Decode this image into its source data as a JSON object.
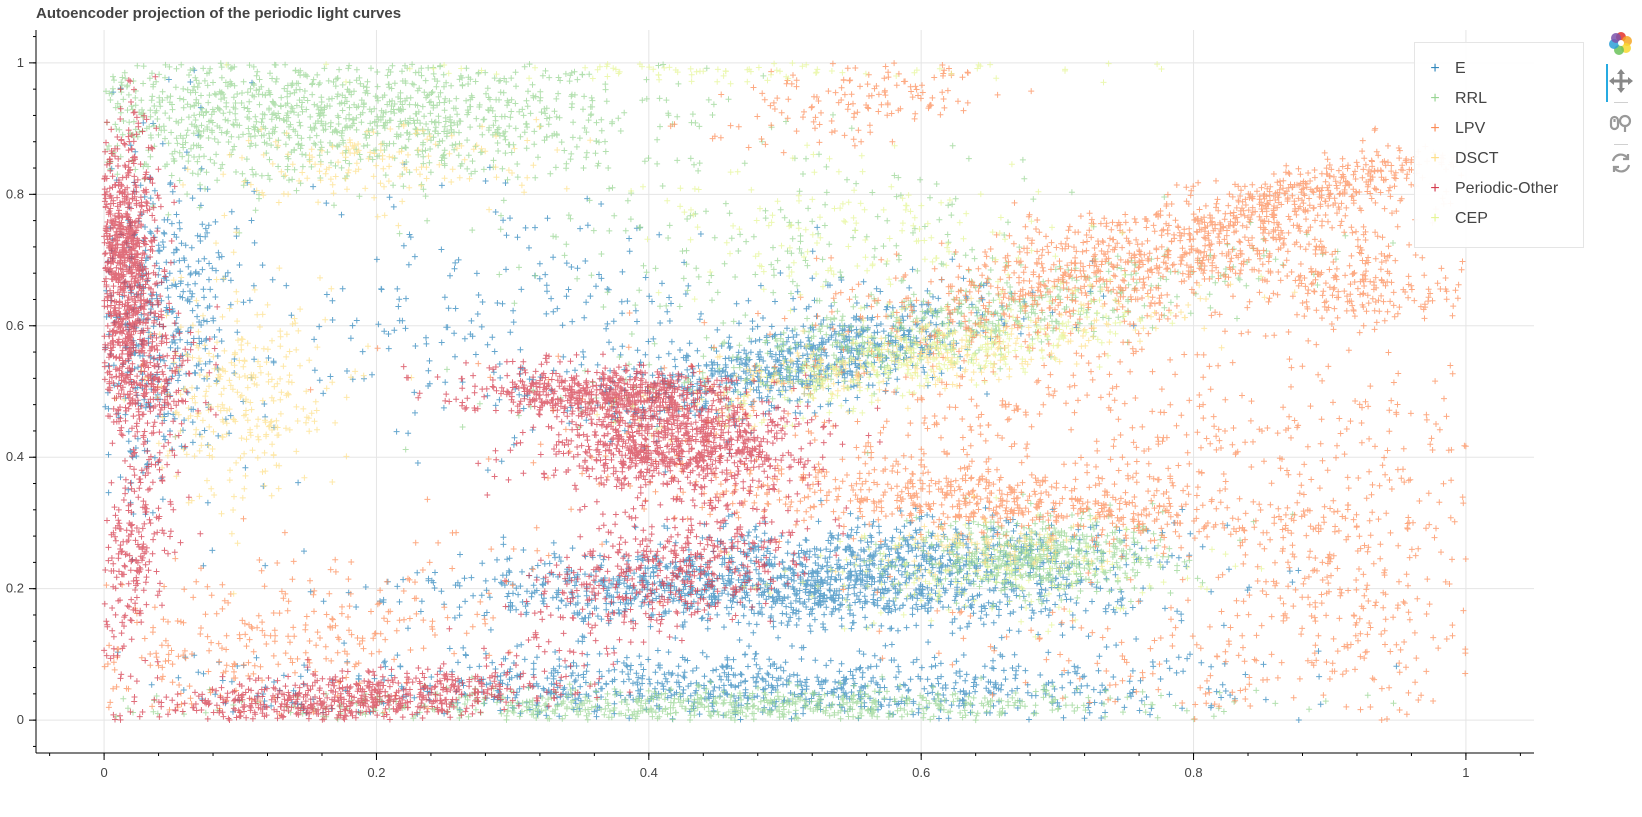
{
  "title": "Autoencoder projection of the periodic light curves",
  "toolbar": {
    "tools": [
      {
        "name": "bokeh-logo-icon",
        "interactable": false
      },
      {
        "name": "pan-icon",
        "interactable": true
      },
      {
        "name": "wheel-zoom-icon",
        "interactable": true
      },
      {
        "name": "reset-icon",
        "interactable": true
      }
    ]
  },
  "chart_data": {
    "type": "scatter",
    "marker": "cross",
    "title": "Autoencoder projection of the periodic light curves",
    "xlabel": "",
    "ylabel": "",
    "xlim": [
      -0.05,
      1.05
    ],
    "ylim": [
      -0.05,
      1.05
    ],
    "x_ticks": [
      "0",
      "0.2",
      "0.4",
      "0.6",
      "0.8",
      "1"
    ],
    "y_ticks": [
      "0",
      "0.2",
      "0.4",
      "0.6",
      "0.8",
      "1"
    ],
    "grid": true,
    "legend_position": "top-right",
    "series": [
      {
        "name": "E",
        "color": "#3288bd",
        "clusters": [
          {
            "cx": 0.5,
            "cy": 0.2,
            "sx": 0.12,
            "sy": 0.03,
            "n": 1200,
            "slope": 0
          },
          {
            "cx": 0.47,
            "cy": 0.05,
            "sx": 0.17,
            "sy": 0.03,
            "n": 900,
            "slope": 0
          },
          {
            "cx": 0.52,
            "cy": 0.55,
            "sx": 0.07,
            "sy": 0.03,
            "n": 700,
            "slope": 0.45
          },
          {
            "cx": 0.04,
            "cy": 0.6,
            "sx": 0.03,
            "sy": 0.13,
            "n": 500,
            "slope": 0
          },
          {
            "cx": 0.6,
            "cy": 0.26,
            "sx": 0.08,
            "sy": 0.025,
            "n": 400,
            "slope": 0
          },
          {
            "cx": 0.35,
            "cy": 0.6,
            "sx": 0.12,
            "sy": 0.1,
            "n": 300,
            "slope": 0
          }
        ]
      },
      {
        "name": "RRL",
        "color": "#99d594",
        "clusters": [
          {
            "cx": 0.15,
            "cy": 0.92,
            "sx": 0.13,
            "sy": 0.05,
            "n": 1300,
            "slope": 0
          },
          {
            "cx": 0.62,
            "cy": 0.6,
            "sx": 0.12,
            "sy": 0.03,
            "n": 500,
            "slope": 0.4
          },
          {
            "cx": 0.68,
            "cy": 0.25,
            "sx": 0.05,
            "sy": 0.03,
            "n": 500,
            "slope": 0
          },
          {
            "cx": 0.45,
            "cy": 0.02,
            "sx": 0.16,
            "sy": 0.015,
            "n": 700,
            "slope": 0
          },
          {
            "cx": 0.5,
            "cy": 0.72,
            "sx": 0.1,
            "sy": 0.07,
            "n": 200,
            "slope": 0
          }
        ]
      },
      {
        "name": "LPV",
        "color": "#fc8d59",
        "clusters": [
          {
            "cx": 0.76,
            "cy": 0.7,
            "sx": 0.1,
            "sy": 0.04,
            "n": 900,
            "slope": 0.45
          },
          {
            "cx": 0.66,
            "cy": 0.33,
            "sx": 0.12,
            "sy": 0.025,
            "n": 600,
            "slope": -0.12
          },
          {
            "cx": 0.89,
            "cy": 0.81,
            "sx": 0.05,
            "sy": 0.02,
            "n": 300,
            "slope": 0.5
          },
          {
            "cx": 0.92,
            "cy": 0.66,
            "sx": 0.04,
            "sy": 0.03,
            "n": 200,
            "slope": 0
          },
          {
            "cx": 0.72,
            "cy": 0.45,
            "sx": 0.18,
            "sy": 0.08,
            "n": 500,
            "slope": 0
          },
          {
            "cx": 0.55,
            "cy": 0.94,
            "sx": 0.05,
            "sy": 0.03,
            "n": 150,
            "slope": 0.35
          },
          {
            "cx": 0.92,
            "cy": 0.25,
            "sx": 0.06,
            "sy": 0.1,
            "n": 250,
            "slope": 0
          },
          {
            "cx": 0.1,
            "cy": 0.12,
            "sx": 0.1,
            "sy": 0.06,
            "n": 350,
            "slope": 0.3
          },
          {
            "cx": 0.85,
            "cy": 0.1,
            "sx": 0.12,
            "sy": 0.06,
            "n": 200,
            "slope": 0
          }
        ]
      },
      {
        "name": "DSCT",
        "color": "#fee08b",
        "clusters": [
          {
            "cx": 0.1,
            "cy": 0.5,
            "sx": 0.04,
            "sy": 0.08,
            "n": 300,
            "slope": 0
          },
          {
            "cx": 0.6,
            "cy": 0.55,
            "sx": 0.1,
            "sy": 0.03,
            "n": 300,
            "slope": 0.4
          },
          {
            "cx": 0.2,
            "cy": 0.85,
            "sx": 0.06,
            "sy": 0.03,
            "n": 150,
            "slope": 0
          },
          {
            "cx": 0.65,
            "cy": 0.26,
            "sx": 0.04,
            "sy": 0.02,
            "n": 100,
            "slope": 0
          }
        ]
      },
      {
        "name": "Periodic-Other",
        "color": "#d53e4f",
        "clusters": [
          {
            "cx": 0.015,
            "cy": 0.7,
            "sx": 0.012,
            "sy": 0.1,
            "n": 900,
            "slope": 0
          },
          {
            "cx": 0.42,
            "cy": 0.42,
            "sx": 0.05,
            "sy": 0.035,
            "n": 900,
            "slope": 0
          },
          {
            "cx": 0.37,
            "cy": 0.5,
            "sx": 0.05,
            "sy": 0.02,
            "n": 600,
            "slope": 0
          },
          {
            "cx": 0.18,
            "cy": 0.03,
            "sx": 0.08,
            "sy": 0.02,
            "n": 700,
            "slope": 0.15
          },
          {
            "cx": 0.42,
            "cy": 0.23,
            "sx": 0.05,
            "sy": 0.05,
            "n": 500,
            "slope": 0.5
          },
          {
            "cx": 0.02,
            "cy": 0.25,
            "sx": 0.015,
            "sy": 0.08,
            "n": 250,
            "slope": 2
          },
          {
            "cx": 0.03,
            "cy": 0.52,
            "sx": 0.02,
            "sy": 0.06,
            "n": 300,
            "slope": 0
          }
        ]
      },
      {
        "name": "CEP",
        "color": "#e6f598",
        "clusters": [
          {
            "cx": 0.6,
            "cy": 0.55,
            "sx": 0.08,
            "sy": 0.03,
            "n": 300,
            "slope": 0.4
          },
          {
            "cx": 0.55,
            "cy": 0.75,
            "sx": 0.08,
            "sy": 0.06,
            "n": 150,
            "slope": 0
          },
          {
            "cx": 0.45,
            "cy": 0.99,
            "sx": 0.12,
            "sy": 0.01,
            "n": 100,
            "slope": 0
          },
          {
            "cx": 0.65,
            "cy": 0.22,
            "sx": 0.08,
            "sy": 0.04,
            "n": 150,
            "slope": 0
          }
        ]
      }
    ]
  }
}
